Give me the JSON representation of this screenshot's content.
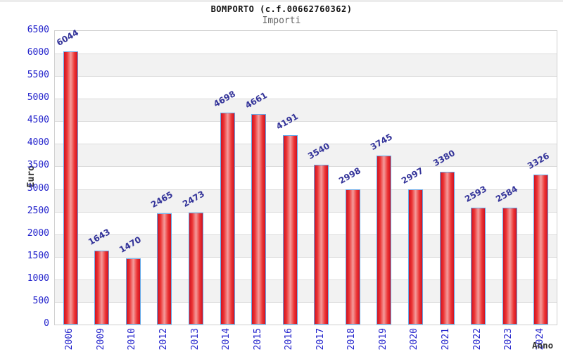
{
  "chart_data": {
    "type": "bar",
    "title": "BOMPORTO (c.f.00662760362)",
    "subtitle": "Importi",
    "xlabel": "Anno",
    "ylabel": "Euro",
    "categories": [
      "2006",
      "2009",
      "2010",
      "2012",
      "2013",
      "2014",
      "2015",
      "2016",
      "2017",
      "2018",
      "2019",
      "2020",
      "2021",
      "2022",
      "2023",
      "2024"
    ],
    "values": [
      6044,
      1643,
      1470,
      2465,
      2473,
      4698,
      4661,
      4191,
      3540,
      2998,
      3745,
      2997,
      3380,
      2593,
      2584,
      3326
    ],
    "ylim": [
      0,
      6500
    ],
    "ytick_step": 500,
    "grid": "horizontal-bands-alternating",
    "legend": "none",
    "colors": {
      "bar_border": "#64a8e8",
      "bar_fill_edge": "#cf1222",
      "bar_fill_mid": "#f49c9c",
      "axis_tick_label": "#2323cc",
      "value_label": "#333399",
      "band_gray": "#f2f2f2",
      "band_white": "#ffffff",
      "plot_border": "#cfcfcf",
      "gridline": "#dcdcdc",
      "title_color": "#111111",
      "subtitle_color": "#666666",
      "axis_title_color": "#333333"
    }
  }
}
